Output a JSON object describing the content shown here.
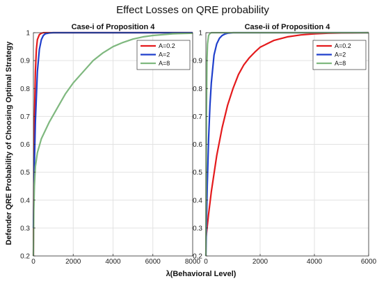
{
  "figure": {
    "title": "Effect Losses on QRE probability",
    "ylabel": "Defender QRE Probability of Choosing Optimal Strategy",
    "xlabel": "λ(Behavioral Level)"
  },
  "chart_data": [
    {
      "type": "line",
      "title": "Case-i of Proposition 4",
      "xlim": [
        0,
        8000
      ],
      "ylim": [
        0.2,
        1
      ],
      "xticks": [
        0,
        2000,
        4000,
        6000,
        8000
      ],
      "yticks": [
        0.2,
        0.3,
        0.4,
        0.5,
        0.6,
        0.7,
        0.8,
        0.9,
        1
      ],
      "grid": true,
      "legend_position": "top-right",
      "series": [
        {
          "name": "A=0.2",
          "color": "#e41a1c",
          "x": [
            0,
            20,
            50,
            100,
            150,
            200,
            300,
            400,
            500,
            600,
            800,
            8000
          ],
          "y": [
            0.2,
            0.45,
            0.68,
            0.86,
            0.94,
            0.975,
            0.993,
            0.998,
            1.0,
            1.0,
            1.0,
            1.0
          ]
        },
        {
          "name": "A=2",
          "color": "#1f3fcc",
          "x": [
            0,
            20,
            50,
            100,
            200,
            300,
            400,
            500,
            600,
            800,
            1000,
            8000
          ],
          "y": [
            0.3,
            0.4,
            0.53,
            0.68,
            0.86,
            0.94,
            0.975,
            0.99,
            0.996,
            0.999,
            1.0,
            1.0
          ]
        },
        {
          "name": "A=8",
          "color": "#7fb87f",
          "x": [
            0,
            20,
            50,
            100,
            200,
            400,
            800,
            1200,
            1600,
            2000,
            2500,
            3000,
            3500,
            4000,
            4500,
            5000,
            5500,
            6000,
            7000,
            8000
          ],
          "y": [
            0.2,
            0.36,
            0.45,
            0.52,
            0.57,
            0.62,
            0.68,
            0.73,
            0.78,
            0.82,
            0.86,
            0.9,
            0.928,
            0.95,
            0.965,
            0.977,
            0.985,
            0.99,
            0.996,
            0.998
          ]
        }
      ]
    },
    {
      "type": "line",
      "title": "Case-ii of Proposition 4",
      "xlim": [
        0,
        6000
      ],
      "ylim": [
        0.2,
        1
      ],
      "xticks": [
        0,
        2000,
        4000,
        6000
      ],
      "yticks": [
        0.2,
        0.3,
        0.4,
        0.5,
        0.6,
        0.7,
        0.8,
        0.9,
        1
      ],
      "grid": true,
      "legend_position": "top-right",
      "series": [
        {
          "name": "A=0.2",
          "color": "#e41a1c",
          "x": [
            0,
            100,
            200,
            400,
            600,
            800,
            1000,
            1200,
            1400,
            1600,
            1800,
            2000,
            2500,
            3000,
            3500,
            4000,
            4500,
            5000,
            6000
          ],
          "y": [
            0.26,
            0.35,
            0.43,
            0.56,
            0.66,
            0.74,
            0.8,
            0.85,
            0.885,
            0.91,
            0.93,
            0.948,
            0.972,
            0.985,
            0.992,
            0.996,
            0.998,
            0.999,
            1.0
          ]
        },
        {
          "name": "A=2",
          "color": "#1f3fcc",
          "x": [
            0,
            20,
            50,
            100,
            150,
            200,
            300,
            400,
            500,
            600,
            700,
            800,
            1000,
            6000
          ],
          "y": [
            0.2,
            0.3,
            0.45,
            0.62,
            0.74,
            0.82,
            0.92,
            0.96,
            0.98,
            0.99,
            0.995,
            0.998,
            1.0,
            1.0
          ]
        },
        {
          "name": "A=8",
          "color": "#7fb87f",
          "x": [
            0,
            10,
            20,
            40,
            60,
            100,
            150,
            200,
            6000
          ],
          "y": [
            0.2,
            0.45,
            0.7,
            0.9,
            0.96,
            0.99,
            0.997,
            1.0,
            1.0
          ]
        }
      ]
    }
  ]
}
